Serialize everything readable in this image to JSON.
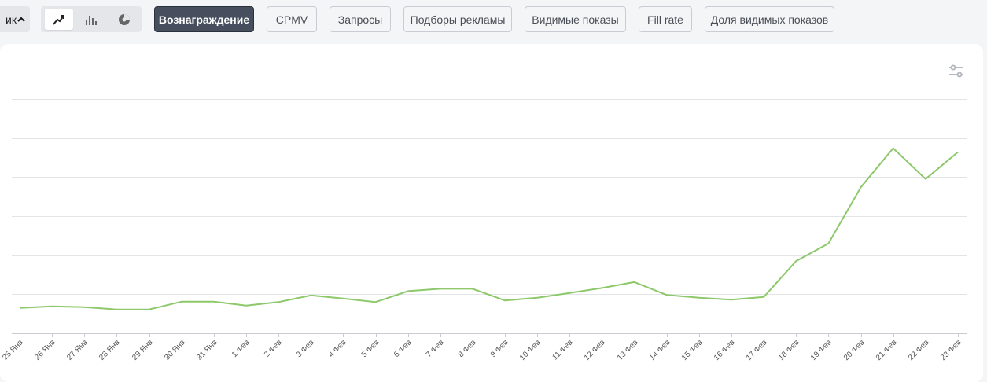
{
  "chart_type_select": {
    "label": "ик",
    "chevron_icon": "chevron-up-icon"
  },
  "chart_types": [
    {
      "name": "line-chart-icon",
      "active": true
    },
    {
      "name": "bar-chart-icon",
      "active": false
    },
    {
      "name": "pie-chart-icon",
      "active": false
    }
  ],
  "metrics": [
    {
      "label": "Вознаграждение",
      "active": true
    },
    {
      "label": "CPMV",
      "active": false
    },
    {
      "label": "Запросы",
      "active": false
    },
    {
      "label": "Подборы рекламы",
      "active": false
    },
    {
      "label": "Видимые показы",
      "active": false
    },
    {
      "label": "Fill rate",
      "active": false
    },
    {
      "label": "Доля видимых показов",
      "active": false
    }
  ],
  "settings_icon": "sliders-icon",
  "colors": {
    "line": "#8dc86a",
    "active_button": "#474f5f"
  },
  "chart_data": {
    "type": "line",
    "x": [
      "25 Янв",
      "26 Янв",
      "27 Янв",
      "28 Янв",
      "29 Янв",
      "30 Янв",
      "31 Янв",
      "1 Фев",
      "2 Фев",
      "3 Фев",
      "4 Фев",
      "5 Фев",
      "6 Фев",
      "7 Фев",
      "8 Фев",
      "9 Фев",
      "10 Фев",
      "11 Фев",
      "12 Фев",
      "13 Фев",
      "14 Фев",
      "15 Фев",
      "16 Фев",
      "17 Фев",
      "18 Фев",
      "19 Фев",
      "20 Фев",
      "21 Фев",
      "22 Фев",
      "23 Фев"
    ],
    "series": [
      {
        "values": [
          0.65,
          0.69,
          0.67,
          0.61,
          0.61,
          0.81,
          0.81,
          0.71,
          0.8,
          0.97,
          0.89,
          0.8,
          1.08,
          1.14,
          1.14,
          0.84,
          0.91,
          1.03,
          1.16,
          1.31,
          0.98,
          0.91,
          0.86,
          0.93,
          1.85,
          2.3,
          3.74,
          4.74,
          3.95,
          4.64
        ]
      }
    ],
    "ylim": [
      0,
      6
    ],
    "yticks": [
      0,
      1,
      2,
      3,
      4,
      5,
      6
    ],
    "y_tick_labels_visible": false,
    "grid": true,
    "legend": "none"
  }
}
